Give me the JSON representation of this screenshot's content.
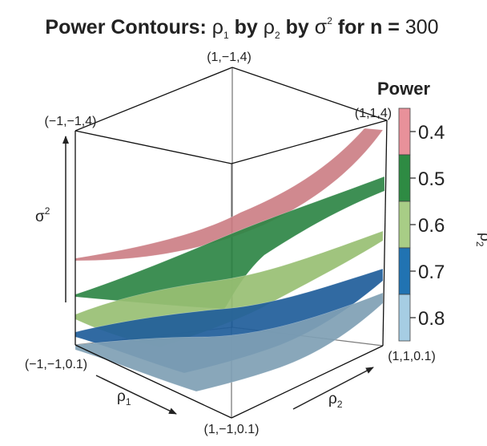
{
  "chart_data": {
    "type": "3d-surface",
    "title": {
      "prefix": "Power Contours: ",
      "rho1_sym": "ρ",
      "rho1_sub": "1",
      "by1": " by ",
      "rho2_sym": "ρ",
      "rho2_sub": "2",
      "by2": " by ",
      "sigma_sym": "σ",
      "sigma_sup": "2",
      "for_n": " for n = ",
      "n_value": "300"
    },
    "axes": {
      "x": {
        "symbol": "ρ",
        "sub": "1",
        "range": [
          -1,
          1
        ]
      },
      "y": {
        "symbol": "ρ",
        "sub": "2",
        "range": [
          -1,
          1
        ]
      },
      "z": {
        "symbol": "σ",
        "sup": "2",
        "range": [
          0.1,
          4
        ]
      }
    },
    "corner_labels": {
      "back_top": "(1,−1,4)",
      "left_top": "(−1,−1,4)",
      "right_top": "(1,1,4)",
      "left_bottom": "(−1,−1,0.1)",
      "front_bottom": "(1,−1,0.1)",
      "right_bottom": "(1,1,0.1)"
    },
    "legend": {
      "title": "Power",
      "placement": "right",
      "ticks": [
        "0.4",
        "0.5",
        "0.6",
        "0.7",
        "0.8"
      ],
      "bands": [
        "#e8919a",
        "#2e8b43",
        "#a8cd86",
        "#2173b2",
        "#a6cde3"
      ]
    },
    "series": [
      {
        "power": 0.4,
        "color": "#cc7f85"
      },
      {
        "power": 0.5,
        "color": "#2e8545"
      },
      {
        "power": 0.6,
        "color": "#98bf73"
      },
      {
        "power": 0.7,
        "color": "#1f5d9a"
      },
      {
        "power": 0.8,
        "color": "#7f9fb4"
      }
    ],
    "grid": false
  }
}
